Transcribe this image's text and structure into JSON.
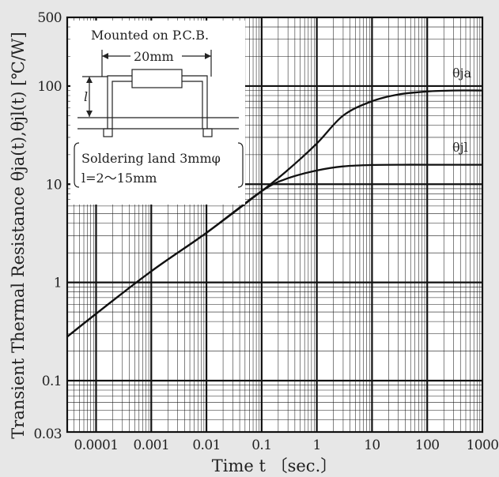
{
  "chart_data": {
    "type": "line",
    "xlabel": "Time  t 〔sec.〕",
    "ylabel": "Transient Thermal Resistance  θja(t),θjl(t) [℃/W]",
    "x_scale": "log",
    "y_scale": "log",
    "xlim": [
      3e-05,
      1000
    ],
    "ylim": [
      0.03,
      500
    ],
    "x_ticks": [
      {
        "value": 0.0001,
        "label": "0.0001"
      },
      {
        "value": 0.001,
        "label": "0.001"
      },
      {
        "value": 0.01,
        "label": "0.01"
      },
      {
        "value": 0.1,
        "label": "0.1"
      },
      {
        "value": 1,
        "label": "1"
      },
      {
        "value": 10,
        "label": "10"
      },
      {
        "value": 100,
        "label": "100"
      },
      {
        "value": 1000,
        "label": "1000"
      }
    ],
    "y_ticks": [
      {
        "value": 0.03,
        "label": "0.03"
      },
      {
        "value": 0.1,
        "label": "0.1"
      },
      {
        "value": 1,
        "label": "1"
      },
      {
        "value": 10,
        "label": "10"
      },
      {
        "value": 100,
        "label": "100"
      },
      {
        "value": 500,
        "label": "500"
      }
    ],
    "grid": true,
    "series": [
      {
        "name": "θja",
        "x": [
          3e-05,
          0.0001,
          0.001,
          0.01,
          0.1,
          0.3,
          1,
          3,
          10,
          30,
          100,
          300,
          1000
        ],
        "y": [
          0.28,
          0.48,
          1.3,
          3.2,
          8.5,
          14,
          26,
          50,
          70,
          82,
          88,
          90,
          90
        ]
      },
      {
        "name": "θjl",
        "x": [
          3e-05,
          0.0001,
          0.001,
          0.01,
          0.1,
          0.3,
          1,
          3,
          10,
          30,
          100,
          300,
          1000
        ],
        "y": [
          0.28,
          0.48,
          1.3,
          3.2,
          8.5,
          11.5,
          13.8,
          15.2,
          15.7,
          15.8,
          15.8,
          15.8,
          15.8
        ]
      }
    ],
    "inset": {
      "title": "Mounted on P.C.B.",
      "dimension_label": "20mm",
      "length_symbol": "l",
      "note_line1": "Soldering land 3mmφ",
      "note_line2": "l=2〜15mm"
    }
  }
}
